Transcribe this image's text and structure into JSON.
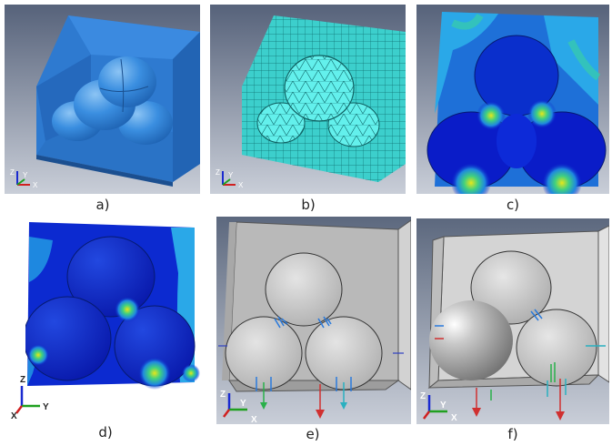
{
  "panels": [
    {
      "caption": "a)",
      "triad": [
        "Z",
        "Y",
        "X"
      ]
    },
    {
      "caption": "b)",
      "triad": [
        "Z",
        "Y",
        "X"
      ]
    },
    {
      "caption": "c)"
    },
    {
      "caption": "d)",
      "triad": [
        "Z",
        "Y",
        "X"
      ]
    },
    {
      "caption": "e)",
      "triad": [
        "Z",
        "Y",
        "X"
      ]
    },
    {
      "caption": "f)",
      "triad": [
        "Z",
        "Y",
        "X"
      ]
    }
  ],
  "colors": {
    "viewport_top": "#5e6a80",
    "viewport_bottom": "#c7ccd6",
    "geometry_blue": "#2f86d8",
    "mesh_cyan": "#3fd6d2",
    "contour_low": "#0a1cc8",
    "contour_mid": "#1e88e0",
    "contour_high": "#38c0a0",
    "contour_peak": "#e6e61a",
    "boundary_gray": "#c8c8c8"
  }
}
